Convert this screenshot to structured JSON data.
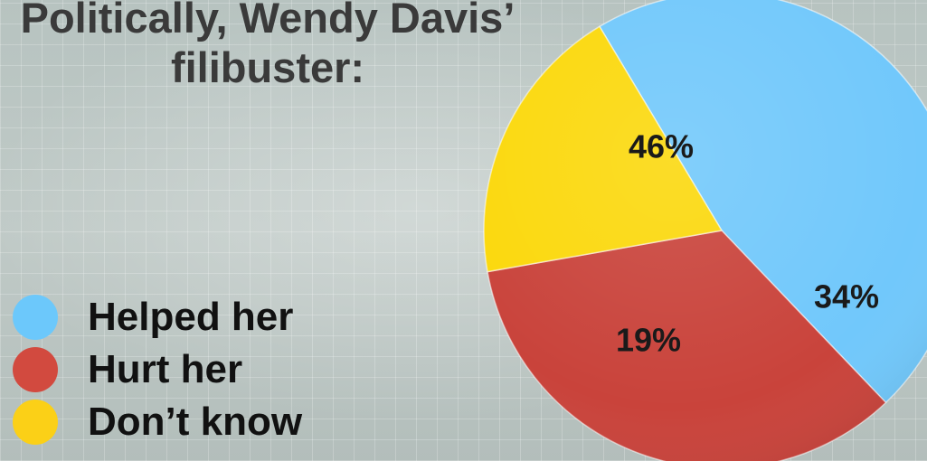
{
  "title_lines": [
    "Politically, Wendy Davis’",
    "filibuster:"
  ],
  "chart_data": {
    "type": "pie",
    "title": "Politically, Wendy Davis’ filibuster:",
    "series": [
      {
        "name": "Helped her",
        "value": 46,
        "label": "46%",
        "color": "#71c8fb"
      },
      {
        "name": "Hurt her",
        "value": 34,
        "label": "34%",
        "color": "#c9433b"
      },
      {
        "name": "Don’t know",
        "value": 19,
        "label": "19%",
        "color": "#fbd80b"
      }
    ],
    "legend_position": "left"
  },
  "legend": [
    {
      "label": "Helped her",
      "color": "#6cc8fb"
    },
    {
      "label": "Hurt her",
      "color": "#d24a3f"
    },
    {
      "label": "Don’t know",
      "color": "#fbd017"
    }
  ]
}
